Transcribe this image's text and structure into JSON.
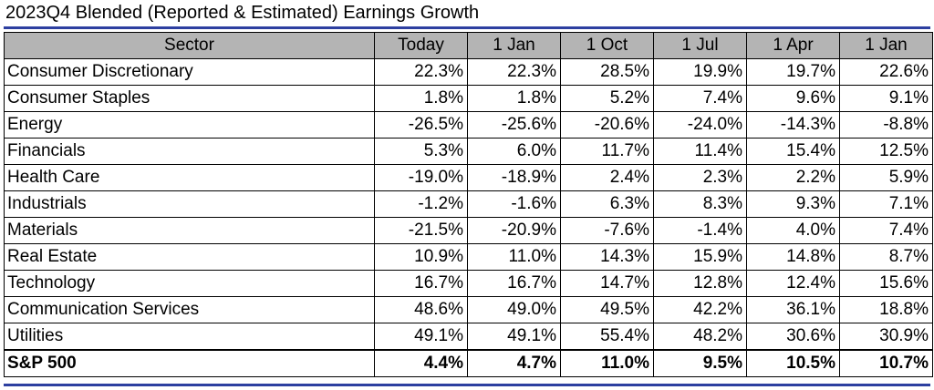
{
  "title": "2023Q4 Blended (Reported & Estimated) Earnings Growth",
  "colors": {
    "rule": "#2d3fa0",
    "header_bg": "#b4b4b4"
  },
  "columns": [
    "Sector",
    "Today",
    "1 Jan",
    "1 Oct",
    "1 Jul",
    "1 Apr",
    "1 Jan"
  ],
  "rows": [
    [
      "Consumer Discretionary",
      "22.3%",
      "22.3%",
      "28.5%",
      "19.9%",
      "19.7%",
      "22.6%"
    ],
    [
      "Consumer Staples",
      "1.8%",
      "1.8%",
      "5.2%",
      "7.4%",
      "9.6%",
      "9.1%"
    ],
    [
      "Energy",
      "-26.5%",
      "-25.6%",
      "-20.6%",
      "-24.0%",
      "-14.3%",
      "-8.8%"
    ],
    [
      "Financials",
      "5.3%",
      "6.0%",
      "11.7%",
      "11.4%",
      "15.4%",
      "12.5%"
    ],
    [
      "Health Care",
      "-19.0%",
      "-18.9%",
      "2.4%",
      "2.3%",
      "2.2%",
      "5.9%"
    ],
    [
      "Industrials",
      "-1.2%",
      "-1.6%",
      "6.3%",
      "8.3%",
      "9.3%",
      "7.1%"
    ],
    [
      "Materials",
      "-21.5%",
      "-20.9%",
      "-7.6%",
      "-1.4%",
      "4.0%",
      "7.4%"
    ],
    [
      "Real Estate",
      "10.9%",
      "11.0%",
      "14.3%",
      "15.9%",
      "14.8%",
      "8.7%"
    ],
    [
      "Technology",
      "16.7%",
      "16.7%",
      "14.7%",
      "12.8%",
      "12.4%",
      "15.6%"
    ],
    [
      "Communication Services",
      "48.6%",
      "49.0%",
      "49.5%",
      "42.2%",
      "36.1%",
      "18.8%"
    ],
    [
      "Utilities",
      "49.1%",
      "49.1%",
      "55.4%",
      "48.2%",
      "30.6%",
      "30.9%"
    ]
  ],
  "total": [
    "S&P 500",
    "4.4%",
    "4.7%",
    "11.0%",
    "9.5%",
    "10.5%",
    "10.7%"
  ]
}
